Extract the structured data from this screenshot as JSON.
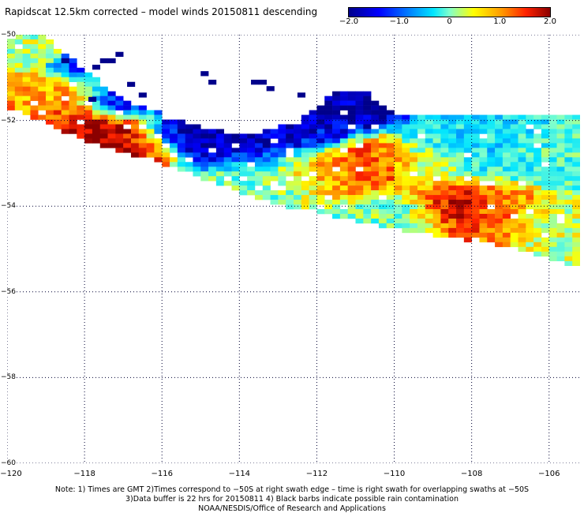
{
  "title": "Rapidscat 12.5km corrected – model winds 20150811 descending",
  "colorbar": {
    "ticks": [
      "−2.0",
      "−1.0",
      "0",
      "1.0",
      "2.0"
    ],
    "min": -2.0,
    "max": 2.0,
    "colors": [
      "#00008b",
      "#0000ff",
      "#0080ff",
      "#00e5ff",
      "#80ffcc",
      "#ffff00",
      "#ff9900",
      "#ff2200",
      "#8b0000"
    ]
  },
  "axes": {
    "lat_labels": [
      "−50",
      "−52",
      "−54",
      "−56",
      "−58",
      "−60"
    ],
    "lat_values": [
      -50,
      -52,
      -54,
      -56,
      -58,
      -60
    ],
    "lon_labels": [
      "−120",
      "−118",
      "−116",
      "−114",
      "−112",
      "−110",
      "−108",
      "−106"
    ],
    "lon_values": [
      -120,
      -118,
      -116,
      -114,
      -112,
      -110,
      -108,
      -106
    ],
    "lon_range": [
      -120,
      -105.2
    ],
    "lat_range": [
      -50,
      -60
    ],
    "grid": "dotted"
  },
  "swath": {
    "description_values": "wind speed difference (corrected minus model), m/s",
    "polygon_lonlat": [
      [
        -120,
        -50.05
      ],
      [
        -119.0,
        -50.05
      ],
      [
        -118.3,
        -50.6
      ],
      [
        -117.6,
        -51.1
      ],
      [
        -116.7,
        -51.6
      ],
      [
        -115.3,
        -52.1
      ],
      [
        -113.8,
        -52.35
      ],
      [
        -112.5,
        -52.05
      ],
      [
        -111.6,
        -51.35
      ],
      [
        -110.8,
        -51.3
      ],
      [
        -109.9,
        -51.9
      ],
      [
        -109.0,
        -51.9
      ],
      [
        -107.6,
        -51.85
      ],
      [
        -105.2,
        -51.85
      ],
      [
        -105.2,
        -55.45
      ],
      [
        -106.0,
        -55.25
      ],
      [
        -107.0,
        -54.95
      ],
      [
        -108.4,
        -54.75
      ],
      [
        -109.9,
        -54.55
      ],
      [
        -111.3,
        -54.3
      ],
      [
        -112.6,
        -54.05
      ],
      [
        -113.8,
        -53.75
      ],
      [
        -115.2,
        -53.25
      ],
      [
        -116.3,
        -52.9
      ],
      [
        -117.8,
        -52.55
      ],
      [
        -119.0,
        -52.05
      ],
      [
        -120,
        -51.7
      ]
    ],
    "blobs": [
      {
        "lon": -117.8,
        "lat": -52.3,
        "v": 1.9,
        "r": 1.2
      },
      {
        "lon": -116.6,
        "lat": -52.75,
        "v": 1.8,
        "r": 0.8
      },
      {
        "lon": -118.8,
        "lat": -51.5,
        "v": 0.9,
        "r": 1.0
      },
      {
        "lon": -119.6,
        "lat": -50.4,
        "v": 0.2,
        "r": 0.6
      },
      {
        "lon": -118.2,
        "lat": -50.8,
        "v": -1.3,
        "r": 0.5
      },
      {
        "lon": -117.1,
        "lat": -51.55,
        "v": -2.0,
        "r": 0.7
      },
      {
        "lon": -115.2,
        "lat": -52.35,
        "v": -2.0,
        "r": 1.0
      },
      {
        "lon": -113.8,
        "lat": -52.55,
        "v": -1.8,
        "r": 0.9
      },
      {
        "lon": -112.2,
        "lat": -52.2,
        "v": -1.6,
        "r": 0.8
      },
      {
        "lon": -111.1,
        "lat": -51.6,
        "v": -1.9,
        "r": 0.9
      },
      {
        "lon": -110.6,
        "lat": -53.1,
        "v": 1.3,
        "r": 1.0
      },
      {
        "lon": -111.9,
        "lat": -53.2,
        "v": 0.7,
        "r": 0.8
      },
      {
        "lon": -108.4,
        "lat": -54.0,
        "v": 1.8,
        "r": 0.8
      },
      {
        "lon": -107.4,
        "lat": -54.1,
        "v": 1.1,
        "r": 0.9
      },
      {
        "lon": -113.6,
        "lat": -53.35,
        "v": 0.0,
        "r": 1.0
      },
      {
        "lon": -108.0,
        "lat": -52.5,
        "v": -0.5,
        "r": 1.2
      },
      {
        "lon": -106.0,
        "lat": -52.8,
        "v": -0.2,
        "r": 1.0
      },
      {
        "lon": -109.0,
        "lat": -53.0,
        "v": 0.3,
        "r": 0.8
      },
      {
        "lon": -105.8,
        "lat": -54.3,
        "v": 0.3,
        "r": 0.8
      },
      {
        "lon": -110.0,
        "lat": -54.2,
        "v": 0.0,
        "r": 0.9
      }
    ],
    "isolated_cells": [
      {
        "lon": -117.6,
        "lat": -50.55,
        "v": -2.0
      },
      {
        "lon": -117.4,
        "lat": -50.55,
        "v": -2.0
      },
      {
        "lon": -117.2,
        "lat": -50.4,
        "v": -2.0
      },
      {
        "lon": -117.8,
        "lat": -50.7,
        "v": -2.0
      },
      {
        "lon": -115.0,
        "lat": -50.85,
        "v": -2.0
      },
      {
        "lon": -114.8,
        "lat": -51.05,
        "v": -2.0
      },
      {
        "lon": -113.7,
        "lat": -51.05,
        "v": -2.0
      },
      {
        "lon": -113.5,
        "lat": -51.05,
        "v": -2.0
      },
      {
        "lon": -113.3,
        "lat": -51.2,
        "v": -2.0
      },
      {
        "lon": -112.5,
        "lat": -51.35,
        "v": -2.0
      },
      {
        "lon": -116.9,
        "lat": -51.1,
        "v": -2.0
      },
      {
        "lon": -116.6,
        "lat": -51.35,
        "v": -2.0
      },
      {
        "lon": -118.6,
        "lat": -50.55,
        "v": -2.0
      },
      {
        "lon": -117.9,
        "lat": -51.45,
        "v": -2.0
      }
    ]
  },
  "notes": {
    "line1": "Note: 1) Times are GMT 2)Times correspond to −50S at right swath edge – time is right swath for overlapping swaths at −50S",
    "line2": "3)Data buffer is 22 hrs for 20150811 4) Black barbs indicate possible rain contamination",
    "line3": "NOAA/NESDIS/Office of Research and Applications"
  }
}
